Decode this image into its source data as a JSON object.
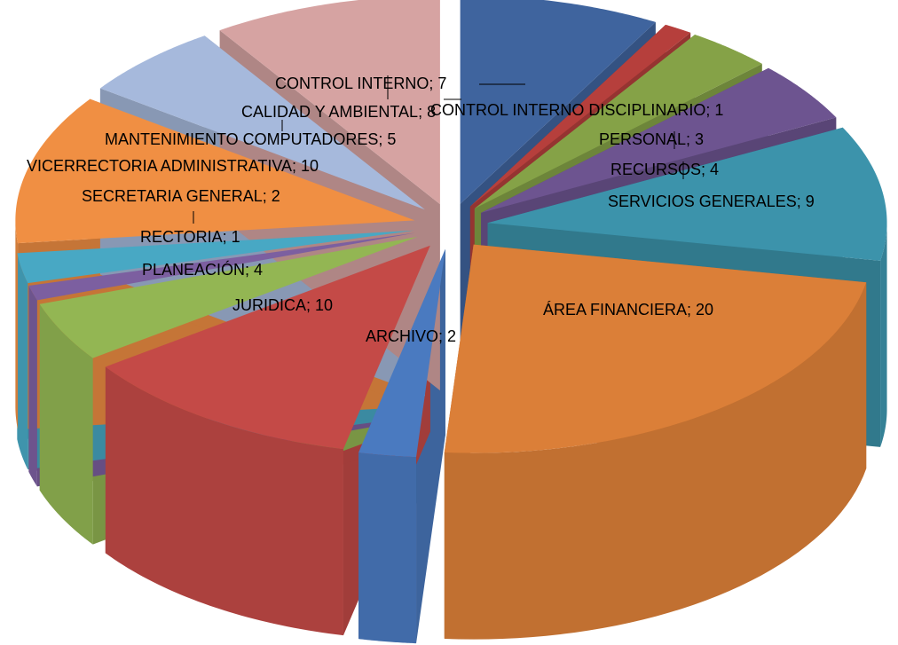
{
  "chart_data": {
    "type": "pie3d",
    "value_labels": [
      "CONTROL INTERNO; 7",
      "CONTROL  INTERNO DISCIPLINARIO; 1",
      "PERSONAL; 3",
      "RECURSOS; 4",
      "SERVICIOS GENERALES; 9",
      "ÁREA FINANCIERA; 20",
      "ARCHIVO; 2",
      "JURIDICA; 10",
      "PLANEACIÓN; 4",
      "RECTORIA; 1",
      "SECRETARIA GENERAL; 2",
      "VICERRECTORIA ADMINISTRATIVA; 10",
      "MANTENIMIENTO COMPUTADORES; 5",
      "CALIDAD Y AMBIENTAL; 8"
    ],
    "values": [
      7,
      1,
      3,
      4,
      9,
      20,
      2,
      10,
      4,
      1,
      2,
      10,
      5,
      8
    ],
    "colors": [
      "#3f649e",
      "#b63f3c",
      "#85a247",
      "#6d5490",
      "#3c93ab",
      "#db7f38",
      "#4a7ac0",
      "#c44a47",
      "#93b653",
      "#7c5fa0",
      "#48a8c4",
      "#f08f43",
      "#a6b9dc",
      "#d6a3a2"
    ]
  }
}
